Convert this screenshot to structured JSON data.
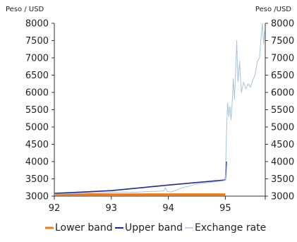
{
  "chart_data": {
    "type": "line",
    "ylabel_left": "Peso / USD",
    "ylabel_right": "Peso /USD",
    "xlim": [
      92,
      95.7
    ],
    "ylim": [
      3000,
      8000
    ],
    "x_ticks": [
      {
        "value": 92,
        "label": "92"
      },
      {
        "value": 93,
        "label": "93"
      },
      {
        "value": 94,
        "label": "94"
      },
      {
        "value": 95,
        "label": "95"
      }
    ],
    "y_ticks": [
      {
        "value": 3000,
        "label": "3000"
      },
      {
        "value": 3500,
        "label": "3500"
      },
      {
        "value": 4000,
        "label": "4000"
      },
      {
        "value": 4500,
        "label": "4500"
      },
      {
        "value": 5000,
        "label": "5000"
      },
      {
        "value": 5500,
        "label": "5500"
      },
      {
        "value": 6000,
        "label": "6000"
      },
      {
        "value": 6500,
        "label": "6500"
      },
      {
        "value": 7000,
        "label": "7000"
      },
      {
        "value": 7500,
        "label": "7500"
      },
      {
        "value": 8000,
        "label": "8000"
      }
    ],
    "grid": false,
    "legend_position": "bottom",
    "series": [
      {
        "name": "Lower band",
        "color": "#f07a1a",
        "points": [
          [
            92.0,
            3050
          ],
          [
            95.0,
            3050
          ]
        ]
      },
      {
        "name": "Upper band",
        "color": "#1f2b8f",
        "points": [
          [
            92.0,
            3080
          ],
          [
            93.0,
            3160
          ],
          [
            94.0,
            3320
          ],
          [
            95.0,
            3470
          ],
          [
            95.02,
            4000
          ]
        ]
      },
      {
        "name": "Exchange rate",
        "color": "#a9c4dc",
        "points": [
          [
            92.0,
            3060
          ],
          [
            92.2,
            3070
          ],
          [
            92.4,
            3080
          ],
          [
            92.6,
            3090
          ],
          [
            92.8,
            3100
          ],
          [
            93.0,
            3110
          ],
          [
            93.2,
            3120
          ],
          [
            93.4,
            3110
          ],
          [
            93.6,
            3130
          ],
          [
            93.8,
            3140
          ],
          [
            93.92,
            3150
          ],
          [
            93.95,
            3240
          ],
          [
            93.98,
            3140
          ],
          [
            94.05,
            3120
          ],
          [
            94.15,
            3180
          ],
          [
            94.25,
            3250
          ],
          [
            94.35,
            3280
          ],
          [
            94.45,
            3330
          ],
          [
            94.55,
            3360
          ],
          [
            94.65,
            3380
          ],
          [
            94.75,
            3400
          ],
          [
            94.85,
            3420
          ],
          [
            94.95,
            3440
          ],
          [
            95.0,
            3460
          ],
          [
            95.02,
            4800
          ],
          [
            95.04,
            5700
          ],
          [
            95.06,
            5300
          ],
          [
            95.08,
            5600
          ],
          [
            95.1,
            5200
          ],
          [
            95.12,
            5700
          ],
          [
            95.14,
            6400
          ],
          [
            95.16,
            5800
          ],
          [
            95.18,
            6600
          ],
          [
            95.2,
            7500
          ],
          [
            95.22,
            6300
          ],
          [
            95.25,
            6900
          ],
          [
            95.28,
            6000
          ],
          [
            95.32,
            6300
          ],
          [
            95.36,
            6100
          ],
          [
            95.4,
            6250
          ],
          [
            95.44,
            6150
          ],
          [
            95.48,
            6350
          ],
          [
            95.52,
            6500
          ],
          [
            95.56,
            6900
          ],
          [
            95.6,
            7000
          ],
          [
            95.63,
            7650
          ],
          [
            95.65,
            8000
          ],
          [
            95.67,
            7400
          ],
          [
            95.69,
            7800
          ]
        ]
      }
    ]
  }
}
